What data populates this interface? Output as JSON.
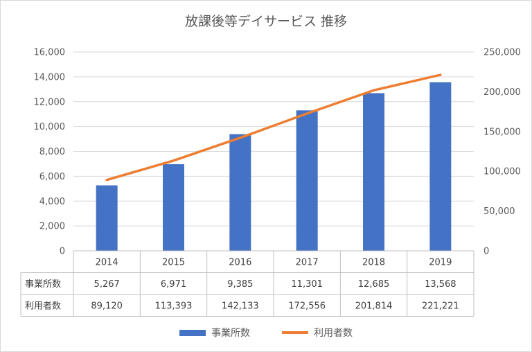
{
  "chart_data": {
    "type": "bar",
    "title": "放課後等デイサービス 推移",
    "categories": [
      "2014",
      "2015",
      "2016",
      "2017",
      "2018",
      "2019"
    ],
    "series": [
      {
        "name": "事業所数",
        "type": "bar",
        "axis": "left",
        "color": "#4472c4",
        "values": [
          5267,
          6971,
          9385,
          11301,
          12685,
          13568
        ]
      },
      {
        "name": "利用者数",
        "type": "line",
        "axis": "right",
        "color": "#ed7d31",
        "values": [
          89120,
          113393,
          142133,
          172556,
          201814,
          221221
        ]
      }
    ],
    "left_axis": {
      "ylim": [
        0,
        16000
      ],
      "ticks": [
        "0",
        "2,000",
        "4,000",
        "6,000",
        "8,000",
        "10,000",
        "12,000",
        "14,000",
        "16,000"
      ]
    },
    "right_axis": {
      "ylim": [
        0,
        250000
      ],
      "ticks": [
        "0",
        "50,000",
        "100,000",
        "150,000",
        "200,000",
        "250,000"
      ]
    },
    "grid": true,
    "legend": "bottom",
    "data_table": {
      "rows": [
        {
          "label": "事業所数",
          "cells": [
            "5,267",
            "6,971",
            "9,385",
            "11,301",
            "12,685",
            "13,568"
          ]
        },
        {
          "label": "利用者数",
          "cells": [
            "89,120",
            "113,393",
            "142,133",
            "172,556",
            "201,814",
            "221,221"
          ]
        }
      ]
    }
  }
}
